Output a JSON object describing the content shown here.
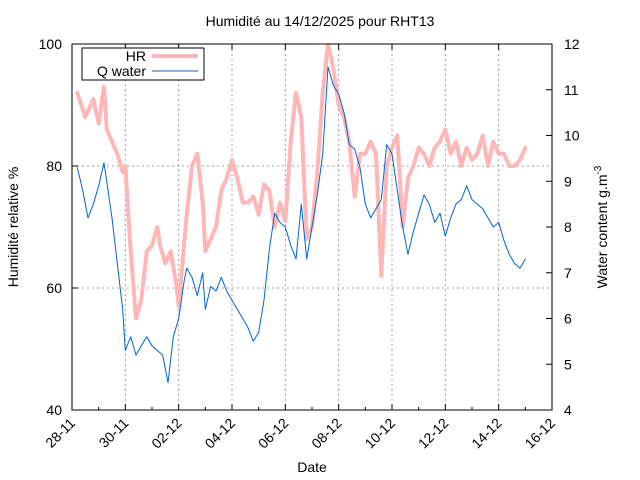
{
  "chart_data": {
    "type": "line",
    "title": "Humidité au 14/12/2025 pour RHT13",
    "xlabel": "Date",
    "ylabel_left": "Humidité relative %",
    "ylabel_right": "Water content g.m",
    "ylabel_right_superscript": "-3",
    "xlim": [
      0,
      18
    ],
    "x_tick_labels": [
      "28-11",
      "30-11",
      "02-12",
      "04-12",
      "06-12",
      "08-12",
      "10-12",
      "12-12",
      "14-12",
      "16-12"
    ],
    "x_tick_days": [
      0,
      2,
      4,
      6,
      8,
      10,
      12,
      14,
      16,
      18
    ],
    "ylim_left": [
      40,
      100
    ],
    "yticks_left": [
      40,
      60,
      80,
      100
    ],
    "ylim_right": [
      4,
      12
    ],
    "yticks_right": [
      4,
      5,
      6,
      7,
      8,
      9,
      10,
      11,
      12
    ],
    "grid": true,
    "legend_position": "top-left",
    "series": [
      {
        "name": "HR",
        "axis": "left",
        "color": "#ffb6b6",
        "x": [
          0.2,
          0.5,
          0.8,
          1.0,
          1.2,
          1.3,
          1.5,
          1.7,
          1.9,
          2.0,
          2.2,
          2.4,
          2.6,
          2.8,
          3.0,
          3.2,
          3.3,
          3.5,
          3.7,
          3.9,
          4.0,
          4.1,
          4.3,
          4.5,
          4.7,
          4.9,
          5.0,
          5.2,
          5.4,
          5.6,
          5.8,
          6.0,
          6.2,
          6.4,
          6.6,
          6.8,
          7.0,
          7.2,
          7.4,
          7.6,
          7.8,
          8.0,
          8.2,
          8.4,
          8.6,
          8.8,
          9.0,
          9.2,
          9.4,
          9.6,
          9.8,
          10.0,
          10.2,
          10.4,
          10.6,
          10.8,
          11.0,
          11.2,
          11.4,
          11.6,
          11.8,
          12.0,
          12.2,
          12.4,
          12.6,
          12.8,
          13.0,
          13.2,
          13.4,
          13.6,
          13.8,
          14.0,
          14.2,
          14.4,
          14.6,
          14.8,
          15.0,
          15.2,
          15.4,
          15.6,
          15.8,
          16.0,
          16.2,
          16.4,
          16.6,
          16.8,
          17.0
        ],
        "y": [
          92,
          88,
          91,
          87,
          93,
          86,
          84,
          82,
          79,
          80,
          66,
          55,
          58,
          66,
          67,
          70,
          67,
          64,
          66,
          61,
          57,
          62,
          72,
          80,
          82,
          74,
          66,
          68,
          70,
          76,
          78,
          81,
          78,
          74,
          74,
          75,
          72,
          77,
          76,
          70,
          74,
          71,
          84,
          92,
          88,
          68,
          70,
          79,
          92,
          100,
          96,
          90,
          88,
          84,
          75,
          82,
          82,
          84,
          82,
          62,
          80,
          83,
          85,
          70,
          78,
          80,
          83,
          82,
          80,
          83,
          84,
          86,
          82,
          84,
          80,
          83,
          81,
          82,
          85,
          80,
          84,
          82,
          82,
          80,
          80,
          81,
          83
        ]
      },
      {
        "name": "Q water",
        "axis": "right",
        "color": "#0066cc",
        "x": [
          0.2,
          0.4,
          0.6,
          0.8,
          1.0,
          1.2,
          1.3,
          1.5,
          1.7,
          1.9,
          2.0,
          2.2,
          2.4,
          2.6,
          2.8,
          3.0,
          3.2,
          3.4,
          3.6,
          3.8,
          4.0,
          4.2,
          4.3,
          4.5,
          4.7,
          4.9,
          5.0,
          5.2,
          5.4,
          5.6,
          5.8,
          6.0,
          6.2,
          6.4,
          6.6,
          6.8,
          7.0,
          7.2,
          7.4,
          7.6,
          7.8,
          8.0,
          8.2,
          8.4,
          8.6,
          8.8,
          9.0,
          9.2,
          9.4,
          9.6,
          9.8,
          10.0,
          10.2,
          10.4,
          10.6,
          10.8,
          11.0,
          11.2,
          11.4,
          11.6,
          11.8,
          12.0,
          12.2,
          12.4,
          12.6,
          12.8,
          13.0,
          13.2,
          13.4,
          13.6,
          13.8,
          14.0,
          14.2,
          14.4,
          14.6,
          14.8,
          15.0,
          15.2,
          15.4,
          15.6,
          15.8,
          16.0,
          16.2,
          16.4,
          16.6,
          16.8,
          17.0
        ],
        "y": [
          9.3,
          8.8,
          8.2,
          8.5,
          8.9,
          9.4,
          9.0,
          8.2,
          7.2,
          6.2,
          5.3,
          5.6,
          5.2,
          5.4,
          5.6,
          5.4,
          5.3,
          5.2,
          4.6,
          5.6,
          6.0,
          6.8,
          7.1,
          6.9,
          6.5,
          7.0,
          6.2,
          6.7,
          6.6,
          6.9,
          6.6,
          6.4,
          6.2,
          6.0,
          5.8,
          5.5,
          5.7,
          6.4,
          7.5,
          8.3,
          8.1,
          8.0,
          7.6,
          7.3,
          8.5,
          7.3,
          8.0,
          8.7,
          9.6,
          11.5,
          11.1,
          10.9,
          10.5,
          9.8,
          9.7,
          9.3,
          8.5,
          8.2,
          8.4,
          8.6,
          9.8,
          9.6,
          8.8,
          8.0,
          7.4,
          7.9,
          8.3,
          8.7,
          8.5,
          8.1,
          8.3,
          7.8,
          8.2,
          8.5,
          8.6,
          8.9,
          8.6,
          8.5,
          8.4,
          8.2,
          8.0,
          8.1,
          7.7,
          7.4,
          7.2,
          7.1,
          7.3
        ]
      }
    ]
  }
}
